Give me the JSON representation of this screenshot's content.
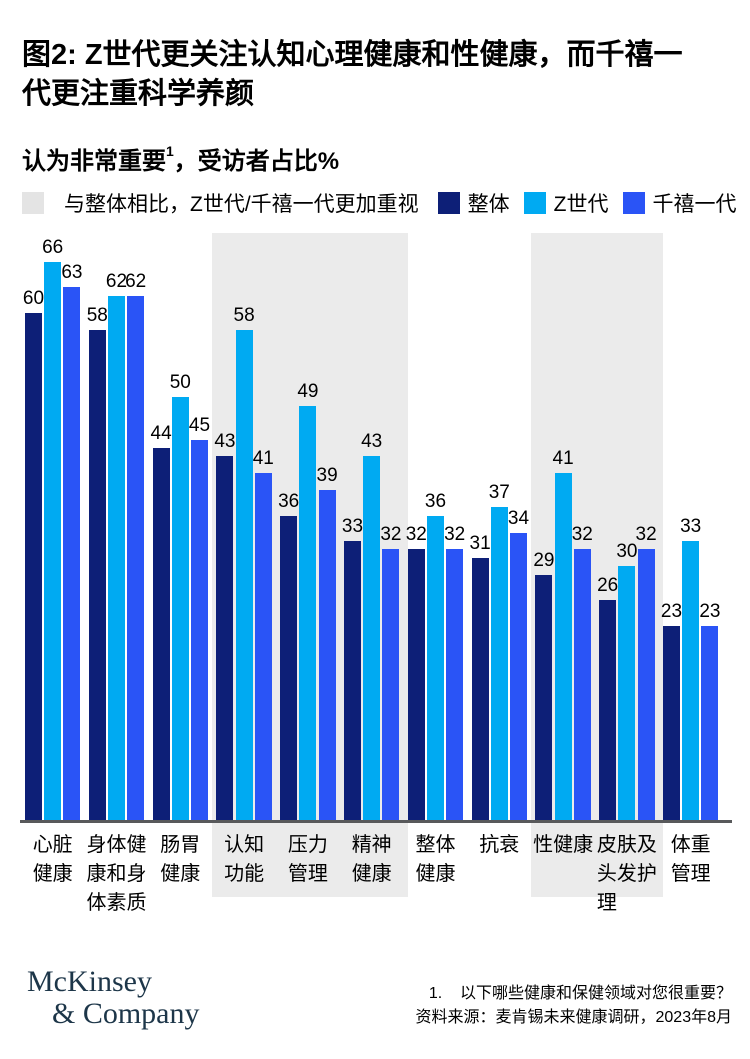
{
  "title": {
    "text": "图2: Z世代更关注认知心理健康和性健康，而千禧一\n代更注重科学养颜"
  },
  "subtitle": {
    "prefix": "认为非常重要",
    "sup": "1",
    "suffix": "，受访者占比%"
  },
  "legend": {
    "highlight_label": "与整体相比，Z世代/千禧一代更加重视",
    "highlight_color": "#e4e4e4",
    "series": [
      {
        "name": "整体",
        "color": "#0d1f77"
      },
      {
        "name": "Z世代",
        "color": "#00aaf2"
      },
      {
        "name": "千禧一代",
        "color": "#2a54f6"
      }
    ]
  },
  "chart_data": {
    "type": "bar",
    "title": "认为非常重要，受访者占比%",
    "xlabel": "",
    "ylabel": "受访者占比%",
    "ylim": [
      0,
      70
    ],
    "grid": false,
    "value_labels": true,
    "legend_position": "top",
    "categories": [
      "心脏健康",
      "身体健康和身体素质",
      "肠胃健康",
      "认知功能",
      "压力管理",
      "精神健康",
      "整体健康",
      "抗衰",
      "性健康",
      "皮肤及头发护理",
      "体重管理"
    ],
    "category_labels": [
      "心脏\n健康",
      "身体健\n康和身\n体素质",
      "肠胃\n健康",
      "认知\n功能",
      "压力\n管理",
      "精神\n健康",
      "整体\n健康",
      "抗衰",
      "性健康",
      "皮肤及\n头发护\n理",
      "体重\n管理"
    ],
    "series": [
      {
        "name": "整体",
        "color": "#0d1f77",
        "values": [
          60,
          58,
          44,
          43,
          36,
          33,
          32,
          31,
          29,
          26,
          23
        ]
      },
      {
        "name": "Z世代",
        "color": "#00aaf2",
        "values": [
          66,
          62,
          50,
          58,
          49,
          43,
          36,
          37,
          41,
          30,
          33
        ]
      },
      {
        "name": "千禧一代",
        "color": "#2a54f6",
        "values": [
          63,
          62,
          45,
          41,
          39,
          32,
          32,
          34,
          32,
          32,
          23
        ]
      }
    ],
    "highlighted_groups": [
      3,
      4,
      5,
      8,
      9
    ],
    "highlight_band_color": "#ebebeb",
    "axis_line_color": "#58595b"
  },
  "footer": {
    "logo_line1": "McKinsey",
    "logo_line2": "& Company",
    "footnote_line1": "1.    以下哪些健康和保健领域对您很重要？",
    "footnote_line2": "资料来源：麦肯锡未来健康调研，2023年8月"
  }
}
